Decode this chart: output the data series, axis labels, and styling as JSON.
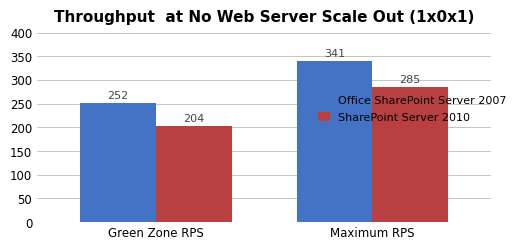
{
  "title": "Throughput  at No Web Server Scale Out (1x0x1)",
  "categories": [
    "Green Zone RPS",
    "Maximum RPS"
  ],
  "series": [
    {
      "label": "Office SharePoint Server 2007",
      "values": [
        252,
        341
      ],
      "color": "#4472C4"
    },
    {
      "label": "SharePoint Server 2010",
      "values": [
        204,
        285
      ],
      "color": "#B94040"
    }
  ],
  "ylim": [
    0,
    400
  ],
  "yticks": [
    0,
    50,
    100,
    150,
    200,
    250,
    300,
    350,
    400
  ],
  "bar_width": 0.35,
  "title_fontsize": 11,
  "tick_fontsize": 8.5,
  "label_fontsize": 8.5,
  "legend_fontsize": 8,
  "value_label_fontsize": 8,
  "background_color": "#FFFFFF",
  "grid_color": "#BBBBBB"
}
